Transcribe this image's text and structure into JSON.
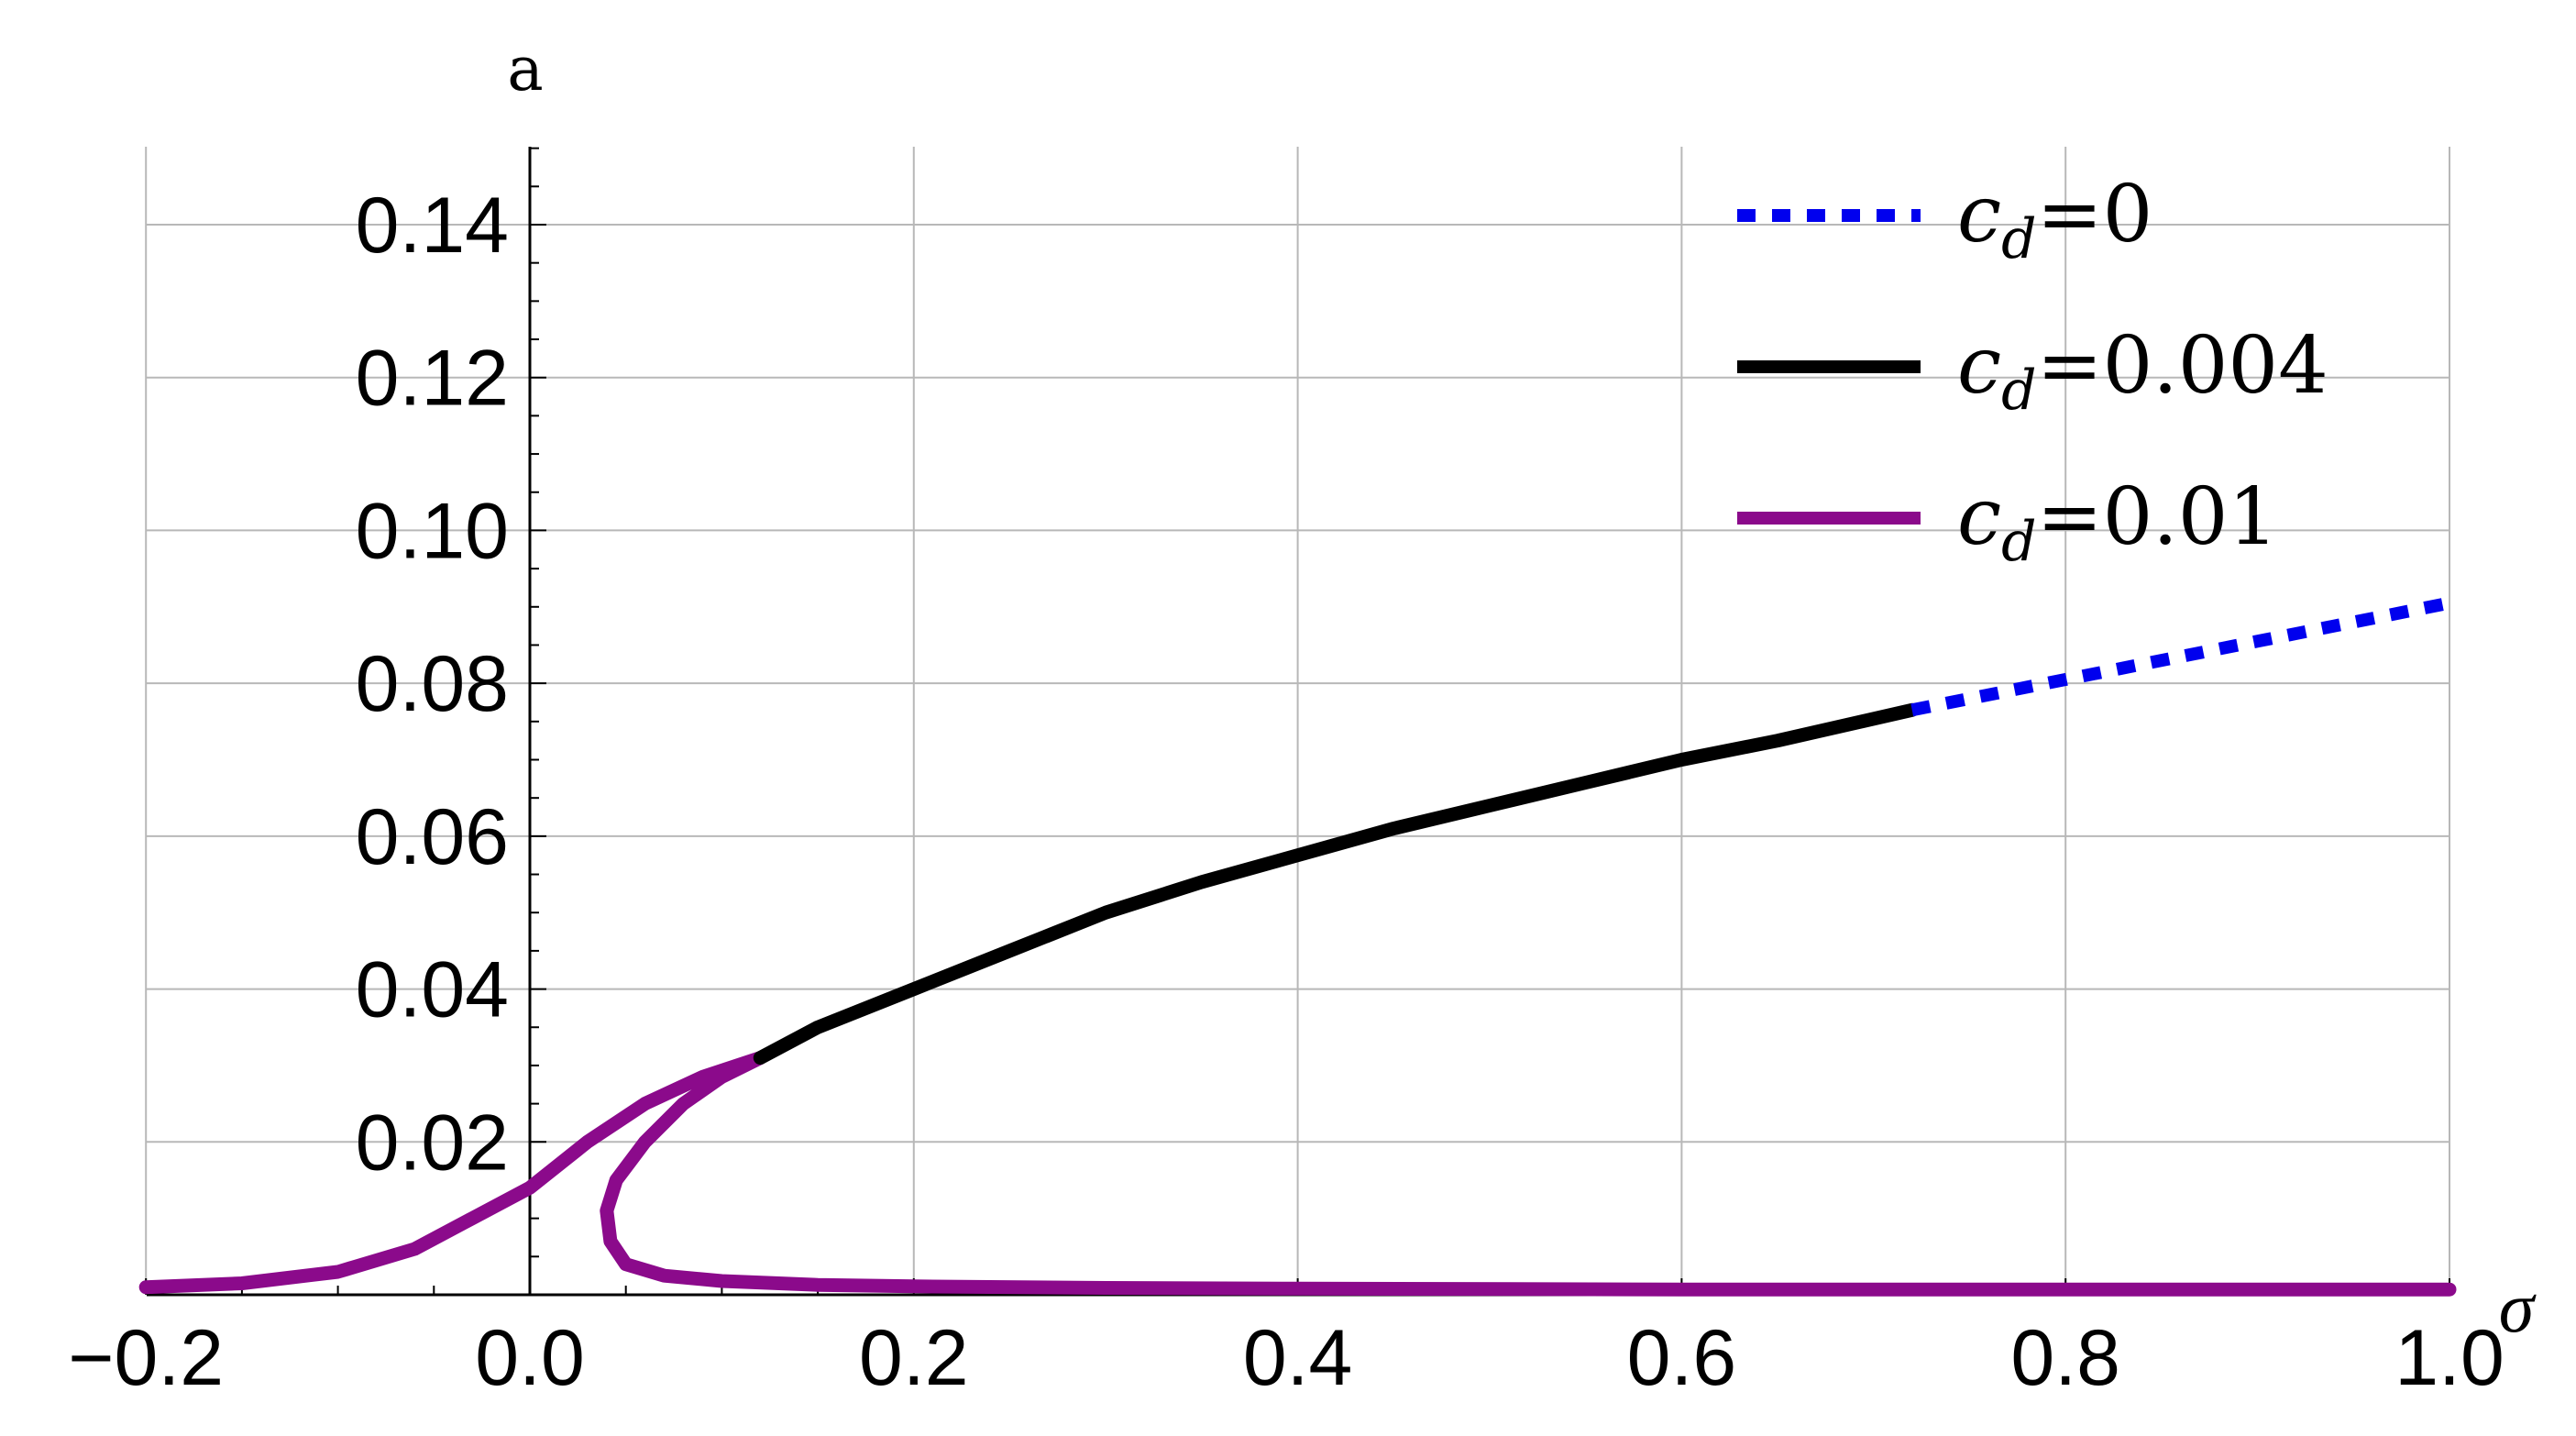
{
  "chart_data": {
    "type": "line",
    "xlabel": "σ",
    "ylabel": "a",
    "xlim": [
      -0.2,
      1.0
    ],
    "ylim": [
      0.0,
      0.15
    ],
    "xticks": [
      -0.2,
      0.0,
      0.2,
      0.4,
      0.6,
      0.8,
      1.0
    ],
    "yticks": [
      0.02,
      0.04,
      0.06,
      0.08,
      0.1,
      0.12,
      0.14
    ],
    "xtick_labels": [
      "−0.2",
      "0.0",
      "0.2",
      "0.4",
      "0.6",
      "0.8",
      "1.0"
    ],
    "ytick_labels": [
      "0.02",
      "0.04",
      "0.06",
      "0.08",
      "0.10",
      "0.12",
      "0.14"
    ],
    "grid": true,
    "legend_position": "top-right",
    "series": [
      {
        "name": "c_d=0",
        "legend_symbol": "c",
        "legend_subscript": "d",
        "legend_value": "=0",
        "color": "#0000ee",
        "dash": "dotted",
        "x": [
          0.72,
          0.8,
          0.9,
          1.0
        ],
        "y": [
          0.0765,
          0.0805,
          0.0855,
          0.0905
        ]
      },
      {
        "name": "c_d=0.004",
        "legend_symbol": "c",
        "legend_subscript": "d",
        "legend_value": "=0.004",
        "color": "#000000",
        "dash": "solid",
        "x": [
          0.12,
          0.15,
          0.2,
          0.25,
          0.3,
          0.35,
          0.4,
          0.45,
          0.5,
          0.55,
          0.6,
          0.65,
          0.72
        ],
        "y": [
          0.031,
          0.035,
          0.04,
          0.045,
          0.05,
          0.054,
          0.0575,
          0.061,
          0.064,
          0.067,
          0.07,
          0.0725,
          0.0765
        ]
      },
      {
        "name": "c_d=0.01",
        "legend_symbol": "c",
        "legend_subscript": "d",
        "legend_value": "=0.01",
        "color": "#8b0a8b",
        "dash": "solid",
        "x": [
          -0.2,
          -0.15,
          -0.1,
          -0.06,
          -0.03,
          0.0,
          0.03,
          0.06,
          0.09,
          0.12,
          0.1,
          0.08,
          0.06,
          0.045,
          0.04,
          0.042,
          0.05,
          0.07,
          0.1,
          0.15,
          0.2,
          0.3,
          0.4,
          0.6,
          0.8,
          1.0
        ],
        "y": [
          0.001,
          0.0015,
          0.003,
          0.006,
          0.01,
          0.014,
          0.02,
          0.025,
          0.0285,
          0.031,
          0.0285,
          0.025,
          0.02,
          0.015,
          0.011,
          0.007,
          0.004,
          0.0025,
          0.0018,
          0.0013,
          0.0011,
          0.0009,
          0.0008,
          0.0007,
          0.0007,
          0.0007
        ]
      }
    ]
  }
}
